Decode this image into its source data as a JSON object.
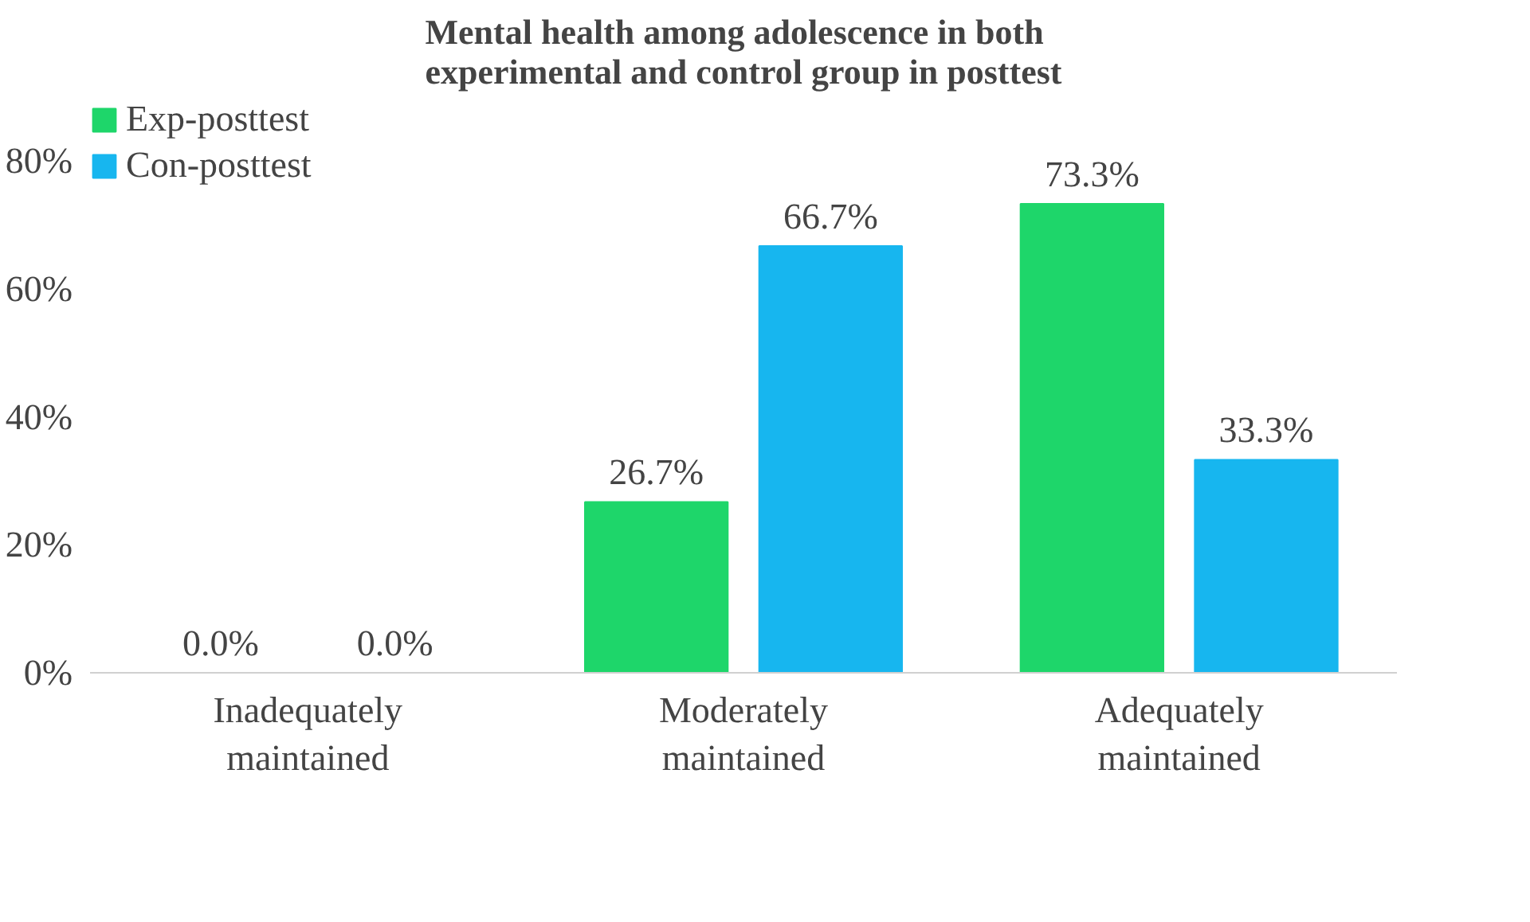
{
  "chart_data": {
    "type": "bar",
    "title": "Mental health among adolescence in both experimental and control group in posttest",
    "categories": [
      "Inadequately maintained",
      "Moderately maintained",
      "Adequately maintained"
    ],
    "series": [
      {
        "name": "Exp-posttest",
        "color": "#1ed66a",
        "values": [
          0,
          26.7,
          73.3
        ],
        "value_labels": [
          "0.0%",
          "26.7%",
          "73.3%"
        ]
      },
      {
        "name": "Con-posttest",
        "color": "#17b6ef",
        "values": [
          0,
          66.7,
          33.3
        ],
        "value_labels": [
          "0.0%",
          "66.7%",
          "33.3%"
        ]
      }
    ],
    "ylim": [
      0,
      80
    ],
    "yticks": [
      {
        "value": 0,
        "label": "0%"
      },
      {
        "value": 20,
        "label": "20%"
      },
      {
        "value": 40,
        "label": "40%"
      },
      {
        "value": 60,
        "label": "60%"
      },
      {
        "value": 80,
        "label": "80%"
      }
    ],
    "grid": false,
    "legend": "top left"
  }
}
